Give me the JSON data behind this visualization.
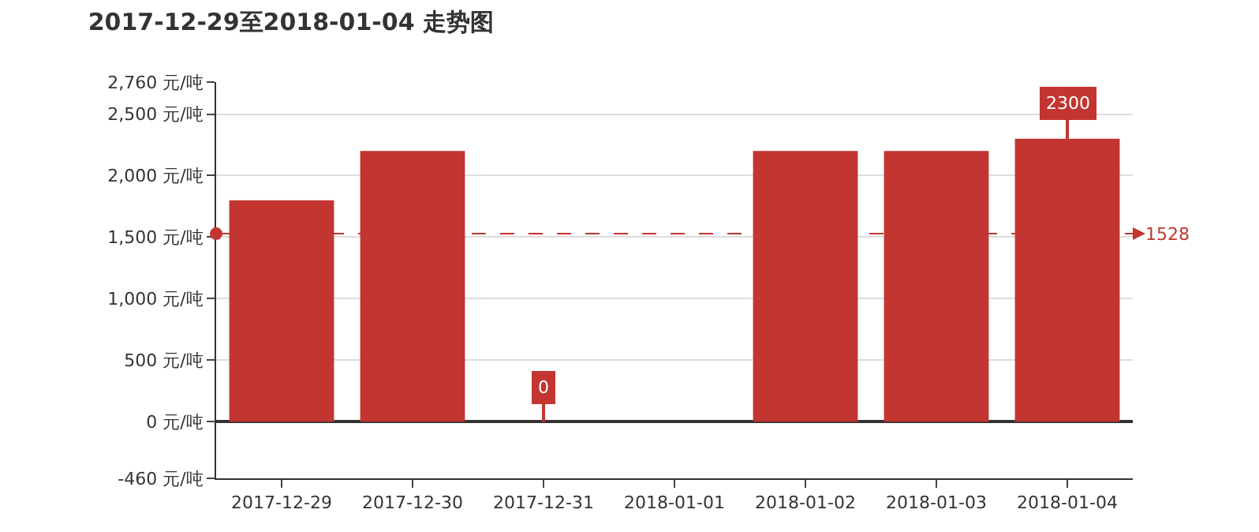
{
  "chart_data": {
    "type": "bar",
    "title": "2017-12-29至2018-01-04 走势图",
    "categories": [
      "2017-12-29",
      "2017-12-30",
      "2017-12-31",
      "2018-01-01",
      "2018-01-02",
      "2018-01-03",
      "2018-01-04"
    ],
    "values": [
      1800,
      2200,
      0,
      0,
      2200,
      2200,
      2300
    ],
    "color": "#c23531",
    "ylim": [
      -460,
      2760
    ],
    "yticks": [
      {
        "value": -460,
        "label": "-460 元/吨"
      },
      {
        "value": 0,
        "label": "0 元/吨"
      },
      {
        "value": 500,
        "label": "500 元/吨"
      },
      {
        "value": 1000,
        "label": "1,000 元/吨"
      },
      {
        "value": 1500,
        "label": "1,500 元/吨"
      },
      {
        "value": 2000,
        "label": "2,000 元/吨"
      },
      {
        "value": 2500,
        "label": "2,500 元/吨"
      },
      {
        "value": 2760,
        "label": "2,760 元/吨"
      }
    ],
    "grid": "y",
    "ref_lines": [
      {
        "axis": "y",
        "value": 1528,
        "label": "1528",
        "color": "#c23531",
        "line_style": "dashed"
      }
    ],
    "annotations": [
      {
        "text": "2300",
        "x": "2018-01-04",
        "y": 2300
      },
      {
        "text": "0",
        "x": "2017-12-31",
        "y": 0
      }
    ]
  }
}
